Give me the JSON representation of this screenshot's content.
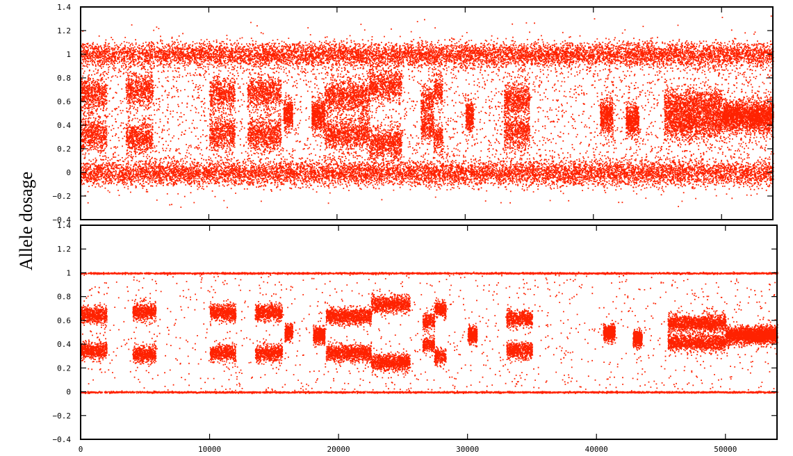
{
  "chart_data": [
    {
      "type": "scatter",
      "panel": "top",
      "ylabel": "Allele dosage",
      "xlabel": "",
      "xlim": [
        0,
        54000
      ],
      "ylim": [
        -0.4,
        1.4
      ],
      "xticks": [
        0,
        10000,
        20000,
        30000,
        40000,
        50000
      ],
      "yticks": [
        -0.4,
        -0.2,
        0,
        0.2,
        0.4,
        0.6,
        0.8,
        1,
        1.2,
        1.4
      ],
      "ytick_labels": [
        "-0.4",
        "-0.2",
        "0",
        "0.2",
        "0.4",
        "0.6",
        "0.8",
        "1",
        "1.2",
        "1.4"
      ],
      "xtick_labels_shown": false,
      "grid": false,
      "point_color": "#ff2200",
      "series": [
        {
          "points_described": "dense homozygous bands",
          "band_centers": [
            0,
            1
          ],
          "band_spread_sd": 0.05
        },
        {
          "points_described": "heterozygous clusters",
          "segments": [
            {
              "x": [
                0,
                2000
              ],
              "y": [
                0.33,
                0.67
              ]
            },
            {
              "x": [
                3500,
                5600
              ],
              "y": [
                0.3,
                0.7
              ]
            },
            {
              "x": [
                10000,
                12000
              ],
              "y": [
                0.33,
                0.67
              ]
            },
            {
              "x": [
                13000,
                15600
              ],
              "y": [
                0.32,
                0.68
              ]
            },
            {
              "x": [
                15800,
                16500
              ],
              "y": [
                0.5
              ]
            },
            {
              "x": [
                18000,
                19000
              ],
              "y": [
                0.48
              ]
            },
            {
              "x": [
                19000,
                22500
              ],
              "y": [
                0.33,
                0.65
              ]
            },
            {
              "x": [
                22500,
                25000
              ],
              "y": [
                0.25,
                0.74
              ]
            },
            {
              "x": [
                26500,
                27500
              ],
              "y": [
                0.4,
                0.6
              ]
            },
            {
              "x": [
                27500,
                28200
              ],
              "y": [
                0.3,
                0.7
              ]
            },
            {
              "x": [
                30000,
                30600
              ],
              "y": [
                0.48
              ]
            },
            {
              "x": [
                33000,
                35000
              ],
              "y": [
                0.35,
                0.62
              ]
            },
            {
              "x": [
                40500,
                41500
              ],
              "y": [
                0.48
              ]
            },
            {
              "x": [
                42500,
                43500
              ],
              "y": [
                0.45
              ]
            },
            {
              "x": [
                45500,
                50000
              ],
              "y": [
                0.42,
                0.58
              ]
            },
            {
              "x": [
                50000,
                54000
              ],
              "y": [
                0.48
              ]
            }
          ]
        }
      ]
    },
    {
      "type": "scatter",
      "panel": "bottom",
      "xlabel": "",
      "xlim": [
        0,
        54000
      ],
      "ylim": [
        -0.4,
        1.4
      ],
      "xticks": [
        0,
        10000,
        20000,
        30000,
        40000,
        50000
      ],
      "xtick_labels": [
        "0",
        "10000",
        "20000",
        "30000",
        "40000",
        "50000"
      ],
      "yticks": [
        -0.4,
        -0.2,
        0,
        0.2,
        0.4,
        0.6,
        0.8,
        1,
        1.2,
        1.4
      ],
      "ytick_labels": [
        "-0.4",
        "-0.2",
        "0",
        "0.2",
        "0.4",
        "0.6",
        "0.8",
        "1",
        "1.2",
        "1.4"
      ],
      "grid": false,
      "point_color": "#ff2200",
      "series": [
        {
          "points_described": "homozygous lines",
          "band_centers": [
            0,
            1
          ],
          "band_spread_sd": 0.003
        },
        {
          "points_described": "heterozygous clusters",
          "segments": [
            {
              "x": [
                0,
                2000
              ],
              "y": [
                0.35,
                0.65
              ]
            },
            {
              "x": [
                4000,
                5800
              ],
              "y": [
                0.32,
                0.68
              ]
            },
            {
              "x": [
                10000,
                12000
              ],
              "y": [
                0.33,
                0.67
              ]
            },
            {
              "x": [
                13500,
                15600
              ],
              "y": [
                0.33,
                0.67
              ]
            },
            {
              "x": [
                15800,
                16400
              ],
              "y": [
                0.5
              ]
            },
            {
              "x": [
                18000,
                18900
              ],
              "y": [
                0.48
              ]
            },
            {
              "x": [
                19000,
                22500
              ],
              "y": [
                0.33,
                0.64
              ]
            },
            {
              "x": [
                22500,
                25500
              ],
              "y": [
                0.25,
                0.74
              ]
            },
            {
              "x": [
                26500,
                27400
              ],
              "y": [
                0.4,
                0.6
              ]
            },
            {
              "x": [
                27400,
                28300
              ],
              "y": [
                0.3,
                0.7
              ]
            },
            {
              "x": [
                30000,
                30700
              ],
              "y": [
                0.48
              ]
            },
            {
              "x": [
                33000,
                35000
              ],
              "y": [
                0.35,
                0.62
              ]
            },
            {
              "x": [
                40500,
                41400
              ],
              "y": [
                0.5
              ]
            },
            {
              "x": [
                42800,
                43500
              ],
              "y": [
                0.45
              ]
            },
            {
              "x": [
                45500,
                50000
              ],
              "y": [
                0.42,
                0.58
              ]
            },
            {
              "x": [
                50000,
                54000
              ],
              "y": [
                0.48
              ]
            }
          ]
        }
      ]
    }
  ]
}
